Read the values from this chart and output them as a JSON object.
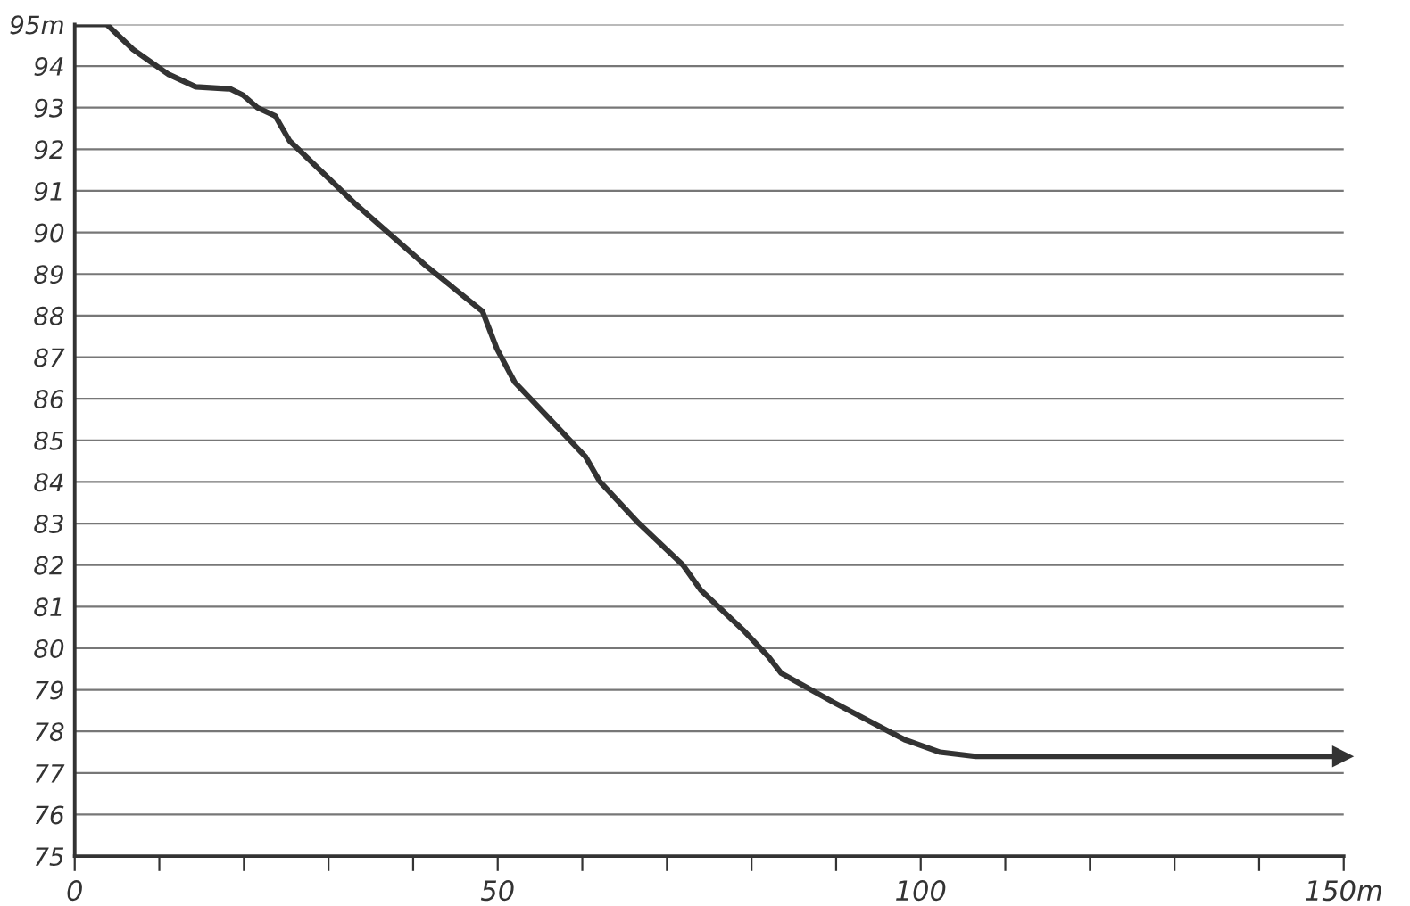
{
  "chart_data": {
    "type": "line",
    "series": [
      {
        "color": "#333333",
        "x": [
          0,
          3.8,
          6.9,
          11.1,
          14.3,
          18.4,
          19.9,
          21.6,
          23.7,
          25.4,
          33.1,
          41.5,
          48.2,
          49.9,
          52,
          56.2,
          60.4,
          62.1,
          66.7,
          71.9,
          74,
          79.2,
          82,
          83.5,
          89.7,
          98.1,
          102.3,
          106.5,
          150
        ],
        "values": [
          95,
          95,
          94.4,
          93.8,
          93.5,
          93.45,
          93.3,
          93.0,
          92.8,
          92.2,
          90.7,
          89.2,
          88.1,
          87.2,
          86.4,
          85.5,
          84.6,
          84.0,
          83.0,
          82.0,
          81.4,
          80.4,
          79.8,
          79.4,
          78.7,
          77.8,
          77.5,
          77.4,
          77.4
        ]
      }
    ],
    "xlim": [
      0,
      150
    ],
    "ylim": [
      75,
      95
    ],
    "xticks": [
      0,
      {
        "value": 10,
        "label": null
      },
      {
        "value": 20,
        "label": null
      },
      {
        "value": 30,
        "label": null
      },
      {
        "value": 40,
        "label": null
      },
      50,
      {
        "value": 60,
        "label": null
      },
      {
        "value": 70,
        "label": null
      },
      {
        "value": 80,
        "label": null
      },
      {
        "value": 90,
        "label": null
      },
      100,
      {
        "value": 110,
        "label": null
      },
      {
        "value": 120,
        "label": null
      },
      {
        "value": 130,
        "label": null
      },
      {
        "value": 140,
        "label": null
      },
      {
        "value": 150,
        "label": "150m"
      }
    ],
    "yticks": [
      75,
      76,
      77,
      78,
      79,
      80,
      81,
      82,
      83,
      84,
      85,
      86,
      87,
      88,
      89,
      90,
      91,
      92,
      93,
      94,
      {
        "value": 95,
        "label": "95m"
      }
    ],
    "grid": "y",
    "marker": "none",
    "line_style": "solid"
  }
}
